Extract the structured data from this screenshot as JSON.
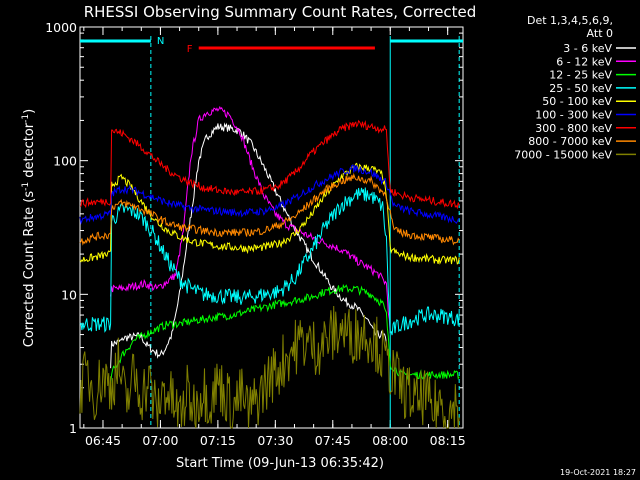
{
  "chart_data": {
    "type": "line",
    "title": "RHESSI Observing Summary Count Rates, Corrected",
    "xlabel": "Start Time (09-Jun-13 06:35:42)",
    "ylabel_parts": [
      "Corrected Count Rate (s",
      "-1",
      " detector",
      "-1",
      ")"
    ],
    "y_scale": "log",
    "ylim": [
      1,
      1000
    ],
    "y_ticks": [
      {
        "value": 1,
        "label": "1"
      },
      {
        "value": 10,
        "label": "10"
      },
      {
        "value": 100,
        "label": "100"
      },
      {
        "value": 1000,
        "label": "1000"
      }
    ],
    "xlim_minutes": [
      0,
      100
    ],
    "x_ticks": [
      {
        "minutes": 6,
        "label": "06:45"
      },
      {
        "minutes": 21,
        "label": "07:00"
      },
      {
        "minutes": 36,
        "label": "07:15"
      },
      {
        "minutes": 51,
        "label": "07:30"
      },
      {
        "minutes": 66,
        "label": "07:45"
      },
      {
        "minutes": 81,
        "label": "08:00"
      },
      {
        "minutes": 96,
        "label": "08:15"
      }
    ],
    "legend_header": [
      "Det 1,3,4,5,6,9,",
      "Att 0"
    ],
    "legend_position": "right",
    "series": [
      {
        "name": "3 - 6 keV",
        "color": "#ffffff",
        "x": [
          8,
          8,
          11,
          11,
          14,
          16,
          17,
          19,
          21,
          22,
          24,
          26,
          29,
          31,
          33,
          36,
          39,
          42,
          45,
          48,
          51,
          54,
          57,
          60,
          63,
          66,
          69,
          72,
          75,
          77,
          79,
          80,
          80
        ],
        "y": [
          3,
          4.2,
          4.5,
          4.7,
          4.8,
          4.9,
          4.3,
          3.8,
          3.5,
          3.8,
          5,
          10,
          40,
          100,
          150,
          180,
          175,
          165,
          130,
          90,
          60,
          40,
          28,
          20,
          15,
          11,
          9,
          8,
          6.5,
          5,
          5,
          4.5,
          2
        ]
      },
      {
        "name": "6 - 12 keV",
        "color": "#ff00ff",
        "x": [
          8,
          8,
          11,
          14,
          17,
          20,
          22,
          25,
          27,
          29,
          31,
          33,
          36,
          39,
          42,
          45,
          48,
          51,
          54,
          57,
          60,
          63,
          66,
          69,
          72,
          75,
          78,
          80,
          81
        ],
        "y": [
          10,
          11,
          11,
          11.5,
          12,
          11,
          12,
          14,
          30,
          110,
          200,
          230,
          240,
          220,
          160,
          90,
          55,
          40,
          33,
          30,
          27,
          25,
          23,
          21,
          18,
          16,
          14,
          12,
          5
        ]
      },
      {
        "name": "12 - 25 keV",
        "color": "#00ff00",
        "x": [
          8,
          8,
          11,
          14,
          17,
          20,
          23,
          26,
          29,
          32,
          36,
          40,
          44,
          48,
          52,
          56,
          60,
          64,
          68,
          72,
          76,
          79,
          80,
          81,
          84,
          87,
          90,
          93,
          96,
          99
        ],
        "y": [
          2,
          2.5,
          3.5,
          4.5,
          5,
          5.5,
          6,
          6,
          6.3,
          6.5,
          6.8,
          7,
          7.5,
          8,
          8.5,
          9,
          9.5,
          10.5,
          11,
          11,
          10,
          8.5,
          7,
          3,
          2.5,
          2.5,
          2.5,
          2.5,
          2.5,
          2.5
        ]
      },
      {
        "name": "25 - 50 keV",
        "color": "#00ffff",
        "x": [
          0,
          4,
          8,
          8,
          11,
          14,
          16,
          18,
          20,
          22,
          24,
          26,
          29,
          32,
          36,
          40,
          44,
          48,
          52,
          56,
          60,
          64,
          68,
          72,
          76,
          79,
          80,
          81,
          82,
          84,
          87,
          90,
          93,
          96,
          99
        ],
        "y": [
          6,
          6,
          6,
          35,
          43,
          42,
          38,
          32,
          26,
          20,
          16,
          13,
          11,
          10,
          9.8,
          9.5,
          9.5,
          10,
          10.5,
          13,
          20,
          32,
          46,
          56,
          55,
          45,
          25,
          5,
          5.5,
          6,
          6.5,
          7,
          7,
          6.8,
          6.5
        ]
      },
      {
        "name": "50 - 100 keV",
        "color": "#ffff00",
        "x": [
          0,
          4,
          8,
          8,
          11,
          14,
          17,
          20,
          23,
          26,
          29,
          32,
          36,
          40,
          44,
          48,
          52,
          56,
          60,
          64,
          68,
          72,
          76,
          79,
          80,
          81,
          83,
          86,
          90,
          94,
          99
        ],
        "y": [
          18,
          19,
          20,
          65,
          75,
          60,
          45,
          35,
          30,
          27,
          25,
          24,
          23,
          22.5,
          22,
          22.5,
          24,
          28,
          38,
          55,
          75,
          90,
          88,
          78,
          55,
          22,
          20,
          19,
          18.5,
          18,
          18
        ]
      },
      {
        "name": "100 - 300 keV",
        "color": "#0000ff",
        "x": [
          0,
          4,
          8,
          8,
          11,
          14,
          17,
          20,
          23,
          26,
          29,
          32,
          36,
          40,
          44,
          48,
          52,
          56,
          60,
          64,
          68,
          72,
          76,
          80,
          82,
          86,
          90,
          94,
          99
        ],
        "y": [
          36,
          38,
          40,
          56,
          62,
          60,
          56,
          52,
          48,
          46,
          44,
          43,
          42,
          41,
          41,
          42,
          45,
          52,
          62,
          72,
          82,
          88,
          82,
          68,
          46,
          42,
          40,
          38,
          36
        ]
      },
      {
        "name": "300 - 800 keV",
        "color": "#ff0000",
        "x": [
          0,
          4,
          8,
          8,
          11,
          14,
          17,
          20,
          23,
          26,
          29,
          32,
          36,
          40,
          44,
          48,
          52,
          56,
          60,
          64,
          68,
          72,
          76,
          80,
          81,
          84,
          88,
          92,
          96,
          99
        ],
        "y": [
          48,
          49,
          50,
          170,
          160,
          140,
          120,
          100,
          85,
          75,
          68,
          63,
          60,
          58,
          58,
          60,
          65,
          80,
          110,
          140,
          170,
          190,
          180,
          170,
          60,
          55,
          52,
          50,
          48,
          47
        ]
      },
      {
        "name": "800 - 7000 keV",
        "color": "#ff8800",
        "x": [
          0,
          4,
          8,
          8,
          11,
          14,
          17,
          20,
          23,
          26,
          29,
          32,
          36,
          40,
          44,
          48,
          52,
          56,
          60,
          64,
          68,
          72,
          76,
          80,
          82,
          86,
          90,
          94,
          99
        ],
        "y": [
          25,
          27,
          28,
          45,
          48,
          46,
          42,
          38,
          34,
          32,
          31,
          30,
          29,
          29,
          29,
          30,
          33,
          38,
          48,
          60,
          70,
          75,
          70,
          55,
          30,
          28,
          27,
          26,
          25
        ]
      },
      {
        "name": "7000 - 15000 keV",
        "color": "#808000",
        "x": [
          0,
          2,
          4,
          6,
          8,
          10,
          12,
          14,
          16,
          18,
          20,
          22,
          24,
          26,
          28,
          30,
          32,
          34,
          36,
          38,
          40,
          42,
          44,
          46,
          48,
          50,
          52,
          54,
          56,
          58,
          60,
          62,
          64,
          66,
          68,
          70,
          72,
          74,
          76,
          78,
          80,
          82,
          84,
          86,
          88,
          90,
          92,
          94,
          96,
          98,
          99
        ],
        "y": [
          2,
          2.5,
          1.8,
          2.5,
          2,
          3,
          1.5,
          2.5,
          1.8,
          2.2,
          1.3,
          2,
          1.6,
          1.2,
          1.8,
          1.4,
          2,
          1.6,
          2.2,
          1.8,
          1.4,
          1.8,
          1.3,
          1.6,
          2,
          2.5,
          2.8,
          3.5,
          4,
          4.5,
          4.2,
          4,
          4.5,
          5,
          5.5,
          5,
          5,
          5.2,
          5,
          4,
          3,
          2.5,
          2,
          1.8,
          1.5,
          1.8,
          1.3,
          1.6,
          1.2,
          1.5,
          1.3
        ]
      }
    ],
    "annotations": {
      "night_label": "N",
      "flare_label": "F",
      "night_color": "#00ffff",
      "flare_color": "#ff0000",
      "night_intervals_minutes": [
        [
          0,
          18.5
        ],
        [
          81,
          100
        ]
      ],
      "flare_interval_minutes": [
        31,
        77
      ],
      "vertical_markers_minutes": [
        18.5,
        81,
        99
      ]
    }
  },
  "timestamp": "19-Oct-2021 18:27"
}
